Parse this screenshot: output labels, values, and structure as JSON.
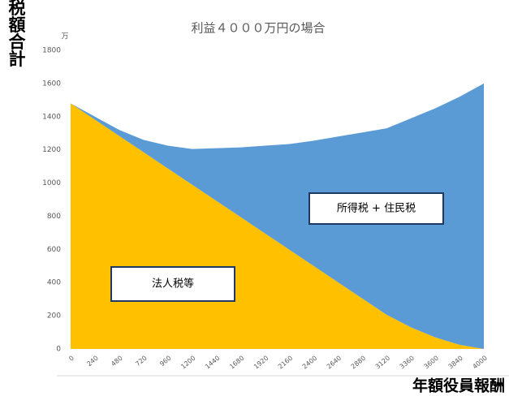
{
  "chart_data": {
    "type": "area",
    "title": "利益４０００万円の場合",
    "y_unit": "万",
    "y_label": "納税額合計",
    "x_label": "年額役員報酬",
    "categories": [
      "0",
      "240",
      "480",
      "720",
      "960",
      "1200",
      "1440",
      "1680",
      "1920",
      "2160",
      "2400",
      "2640",
      "2880",
      "3120",
      "3360",
      "3600",
      "3840",
      "4000"
    ],
    "series": [
      {
        "name": "法人税等",
        "color": "#ffc000",
        "values": [
          1480,
          1382,
          1284,
          1186,
          1088,
          990,
          892,
          794,
          696,
          598,
          500,
          402,
          304,
          206,
          130,
          70,
          25,
          0
        ]
      },
      {
        "name": "所得税 + 住民税",
        "color": "#5b9bd5",
        "values": [
          0,
          18,
          36,
          74,
          137,
          215,
          318,
          421,
          529,
          637,
          755,
          878,
          1001,
          1124,
          1260,
          1380,
          1495,
          1600
        ]
      }
    ],
    "stacked": true,
    "ylim": [
      0,
      1800
    ],
    "yticks": [
      0,
      200,
      400,
      600,
      800,
      1000,
      1200,
      1400,
      1600,
      1800
    ]
  }
}
